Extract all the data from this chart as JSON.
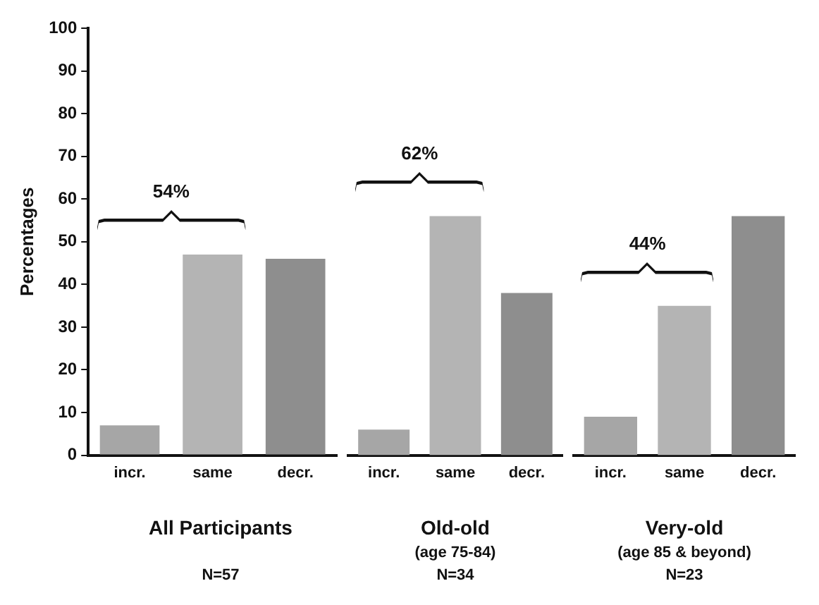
{
  "chart_data": [
    {
      "type": "bar",
      "ylabel": "Percentages",
      "xlabel": "All Participants",
      "categories": [
        "incr.",
        "same",
        "decr."
      ],
      "values": [
        7,
        47,
        46
      ],
      "colors": [
        "#a6a6a6",
        "#b4b4b4",
        "#8e8e8e"
      ],
      "ylim": [
        0,
        100
      ],
      "yticks": [
        0,
        10,
        20,
        30,
        40,
        50,
        60,
        70,
        80,
        90,
        100
      ],
      "annotations": [
        "54%",
        "N=57"
      ]
    },
    {
      "type": "bar",
      "xlabel": "Old-old",
      "categories": [
        "incr.",
        "same",
        "decr."
      ],
      "values": [
        6,
        56,
        38
      ],
      "colors": [
        "#a6a6a6",
        "#b4b4b4",
        "#8e8e8e"
      ],
      "ylim": [
        0,
        100
      ],
      "tick_labels": "x",
      "annotations": [
        "62%",
        "(age 75-84)",
        "N=34"
      ]
    },
    {
      "type": "bar",
      "xlabel": "Very-old",
      "categories": [
        "incr.",
        "same",
        "decr."
      ],
      "values": [
        9,
        35,
        56
      ],
      "colors": [
        "#a6a6a6",
        "#b4b4b4",
        "#8e8e8e"
      ],
      "ylim": [
        0,
        100
      ],
      "tick_labels": "x",
      "annotations": [
        "44%",
        "(age 85 & beyond)",
        "N=23"
      ]
    }
  ]
}
